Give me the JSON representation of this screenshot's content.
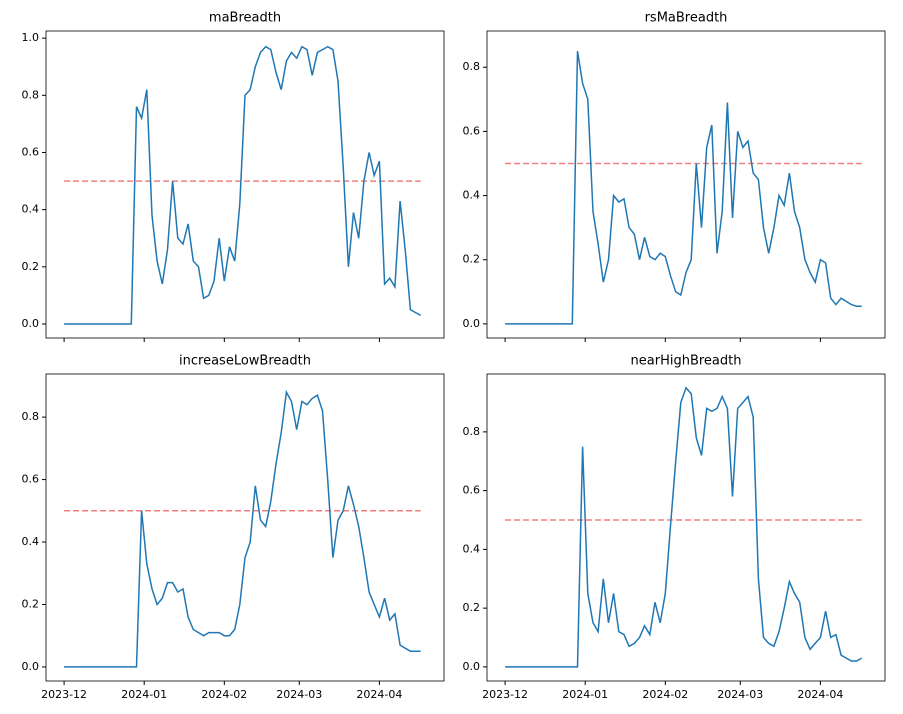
{
  "chart_data": [
    {
      "type": "line",
      "title": "maBreadth",
      "color": "#1f77b4",
      "hline": 0.5,
      "hline_color": "#f07f7f",
      "x": [
        0,
        2,
        4,
        6,
        8,
        10,
        12,
        14,
        16,
        18,
        20,
        22,
        24,
        26,
        28,
        30,
        32,
        34,
        36,
        38,
        40,
        42,
        44,
        46,
        48,
        50,
        52,
        54,
        56,
        58,
        60,
        62,
        64,
        66,
        68,
        70,
        72,
        74,
        76,
        78,
        80,
        82,
        84,
        86,
        88,
        90,
        92,
        94,
        96,
        98,
        100,
        102,
        104,
        106,
        108,
        110,
        112,
        114,
        116,
        118,
        120,
        122,
        124,
        126,
        128,
        130,
        132,
        134,
        136,
        138
      ],
      "values": [
        0,
        0,
        0,
        0,
        0,
        0,
        0,
        0,
        0,
        0,
        0,
        0,
        0,
        0,
        0.76,
        0.72,
        0.82,
        0.38,
        0.22,
        0.14,
        0.26,
        0.5,
        0.3,
        0.28,
        0.35,
        0.22,
        0.2,
        0.09,
        0.1,
        0.15,
        0.3,
        0.15,
        0.27,
        0.22,
        0.42,
        0.8,
        0.82,
        0.9,
        0.95,
        0.97,
        0.96,
        0.88,
        0.82,
        0.92,
        0.95,
        0.93,
        0.97,
        0.96,
        0.87,
        0.95,
        0.96,
        0.97,
        0.96,
        0.85,
        0.55,
        0.2,
        0.39,
        0.3,
        0.5,
        0.6,
        0.52,
        0.57,
        0.14,
        0.16,
        0.13,
        0.43,
        0.26,
        0.05,
        0.04,
        0.03
      ],
      "xlim": [
        -7,
        147
      ],
      "xticks": [
        0,
        31,
        62,
        91,
        122
      ],
      "ylim": [
        -0.049,
        1.025
      ],
      "yticks": [
        {
          "value": 0,
          "label": "0.0"
        },
        0.2,
        0.4,
        0.6,
        0.8,
        {
          "value": 1,
          "label": "1.0"
        }
      ]
    },
    {
      "type": "line",
      "title": "rsMaBreadth",
      "color": "#1f77b4",
      "hline": 0.5,
      "hline_color": "#f07f7f",
      "x": [
        0,
        2,
        4,
        6,
        8,
        10,
        12,
        14,
        16,
        18,
        20,
        22,
        24,
        26,
        28,
        30,
        32,
        34,
        36,
        38,
        40,
        42,
        44,
        46,
        48,
        50,
        52,
        54,
        56,
        58,
        60,
        62,
        64,
        66,
        68,
        70,
        72,
        74,
        76,
        78,
        80,
        82,
        84,
        86,
        88,
        90,
        92,
        94,
        96,
        98,
        100,
        102,
        104,
        106,
        108,
        110,
        112,
        114,
        116,
        118,
        120,
        122,
        124,
        126,
        128,
        130,
        132,
        134,
        136,
        138
      ],
      "values": [
        0,
        0,
        0,
        0,
        0,
        0,
        0,
        0,
        0,
        0,
        0,
        0,
        0,
        0,
        0.85,
        0.75,
        0.7,
        0.35,
        0.25,
        0.13,
        0.2,
        0.4,
        0.38,
        0.39,
        0.3,
        0.28,
        0.2,
        0.27,
        0.21,
        0.2,
        0.22,
        0.21,
        0.15,
        0.1,
        0.09,
        0.16,
        0.2,
        0.5,
        0.3,
        0.55,
        0.62,
        0.22,
        0.35,
        0.69,
        0.33,
        0.6,
        0.55,
        0.57,
        0.47,
        0.45,
        0.3,
        0.22,
        0.3,
        0.4,
        0.37,
        0.47,
        0.35,
        0.3,
        0.2,
        0.16,
        0.13,
        0.2,
        0.19,
        0.08,
        0.06,
        0.08,
        0.07,
        0.06,
        0.055,
        0.055
      ],
      "xlim": [
        -7,
        147
      ],
      "xticks": [
        0,
        31,
        62,
        91,
        122
      ],
      "ylim": [
        -0.044,
        0.913
      ],
      "yticks": [
        {
          "value": 0,
          "label": "0.0"
        },
        0.2,
        0.4,
        0.6,
        0.8
      ]
    },
    {
      "type": "line",
      "title": "increaseLowBreadth",
      "color": "#1f77b4",
      "hline": 0.5,
      "hline_color": "#f07f7f",
      "x": [
        0,
        2,
        4,
        6,
        8,
        10,
        12,
        14,
        16,
        18,
        20,
        22,
        24,
        26,
        28,
        30,
        32,
        34,
        36,
        38,
        40,
        42,
        44,
        46,
        48,
        50,
        52,
        54,
        56,
        58,
        60,
        62,
        64,
        66,
        68,
        70,
        72,
        74,
        76,
        78,
        80,
        82,
        84,
        86,
        88,
        90,
        92,
        94,
        96,
        98,
        100,
        102,
        104,
        106,
        108,
        110,
        112,
        114,
        116,
        118,
        120,
        122,
        124,
        126,
        128,
        130,
        132,
        134,
        136,
        138
      ],
      "values": [
        0,
        0,
        0,
        0,
        0,
        0,
        0,
        0,
        0,
        0,
        0,
        0,
        0,
        0,
        0,
        0.5,
        0.33,
        0.25,
        0.2,
        0.22,
        0.27,
        0.27,
        0.24,
        0.25,
        0.16,
        0.12,
        0.11,
        0.1,
        0.11,
        0.11,
        0.11,
        0.1,
        0.1,
        0.12,
        0.2,
        0.35,
        0.4,
        0.58,
        0.47,
        0.45,
        0.53,
        0.65,
        0.75,
        0.88,
        0.85,
        0.76,
        0.85,
        0.84,
        0.86,
        0.87,
        0.82,
        0.6,
        0.35,
        0.47,
        0.5,
        0.58,
        0.52,
        0.45,
        0.35,
        0.24,
        0.2,
        0.16,
        0.22,
        0.15,
        0.17,
        0.07,
        0.06,
        0.05,
        0.05,
        0.05
      ],
      "xlim": [
        -7,
        147
      ],
      "xticks": [
        {
          "value": 0,
          "label": "2023-12"
        },
        {
          "value": 31,
          "label": "2024-01"
        },
        {
          "value": 62,
          "label": "2024-02"
        },
        {
          "value": 91,
          "label": "2024-03"
        },
        {
          "value": 122,
          "label": "2024-04"
        }
      ],
      "ylim": [
        -0.045,
        0.938
      ],
      "yticks": [
        {
          "value": 0,
          "label": "0.0"
        },
        0.2,
        0.4,
        0.6,
        0.8
      ]
    },
    {
      "type": "line",
      "title": "nearHighBreadth",
      "color": "#1f77b4",
      "hline": 0.5,
      "hline_color": "#f07f7f",
      "x": [
        0,
        2,
        4,
        6,
        8,
        10,
        12,
        14,
        16,
        18,
        20,
        22,
        24,
        26,
        28,
        30,
        32,
        34,
        36,
        38,
        40,
        42,
        44,
        46,
        48,
        50,
        52,
        54,
        56,
        58,
        60,
        62,
        64,
        66,
        68,
        70,
        72,
        74,
        76,
        78,
        80,
        82,
        84,
        86,
        88,
        90,
        92,
        94,
        96,
        98,
        100,
        102,
        104,
        106,
        108,
        110,
        112,
        114,
        116,
        118,
        120,
        122,
        124,
        126,
        128,
        130,
        132,
        134,
        136,
        138
      ],
      "values": [
        0,
        0,
        0,
        0,
        0,
        0,
        0,
        0,
        0,
        0,
        0,
        0,
        0,
        0,
        0,
        0.75,
        0.25,
        0.15,
        0.12,
        0.3,
        0.15,
        0.25,
        0.12,
        0.11,
        0.07,
        0.08,
        0.1,
        0.14,
        0.11,
        0.22,
        0.15,
        0.25,
        0.48,
        0.7,
        0.9,
        0.95,
        0.93,
        0.78,
        0.72,
        0.88,
        0.87,
        0.88,
        0.92,
        0.88,
        0.58,
        0.88,
        0.9,
        0.92,
        0.85,
        0.3,
        0.1,
        0.08,
        0.07,
        0.12,
        0.2,
        0.29,
        0.25,
        0.22,
        0.1,
        0.06,
        0.08,
        0.1,
        0.19,
        0.1,
        0.11,
        0.04,
        0.03,
        0.02,
        0.02,
        0.03
      ],
      "xlim": [
        -7,
        147
      ],
      "xticks": [
        {
          "value": 0,
          "label": "2023-12"
        },
        {
          "value": 31,
          "label": "2024-01"
        },
        {
          "value": 62,
          "label": "2024-02"
        },
        {
          "value": 91,
          "label": "2024-03"
        },
        {
          "value": 122,
          "label": "2024-04"
        }
      ],
      "ylim": [
        -0.048,
        0.997
      ],
      "yticks": [
        {
          "value": 0,
          "label": "0.0"
        },
        0.2,
        0.4,
        0.6,
        0.8
      ]
    }
  ]
}
